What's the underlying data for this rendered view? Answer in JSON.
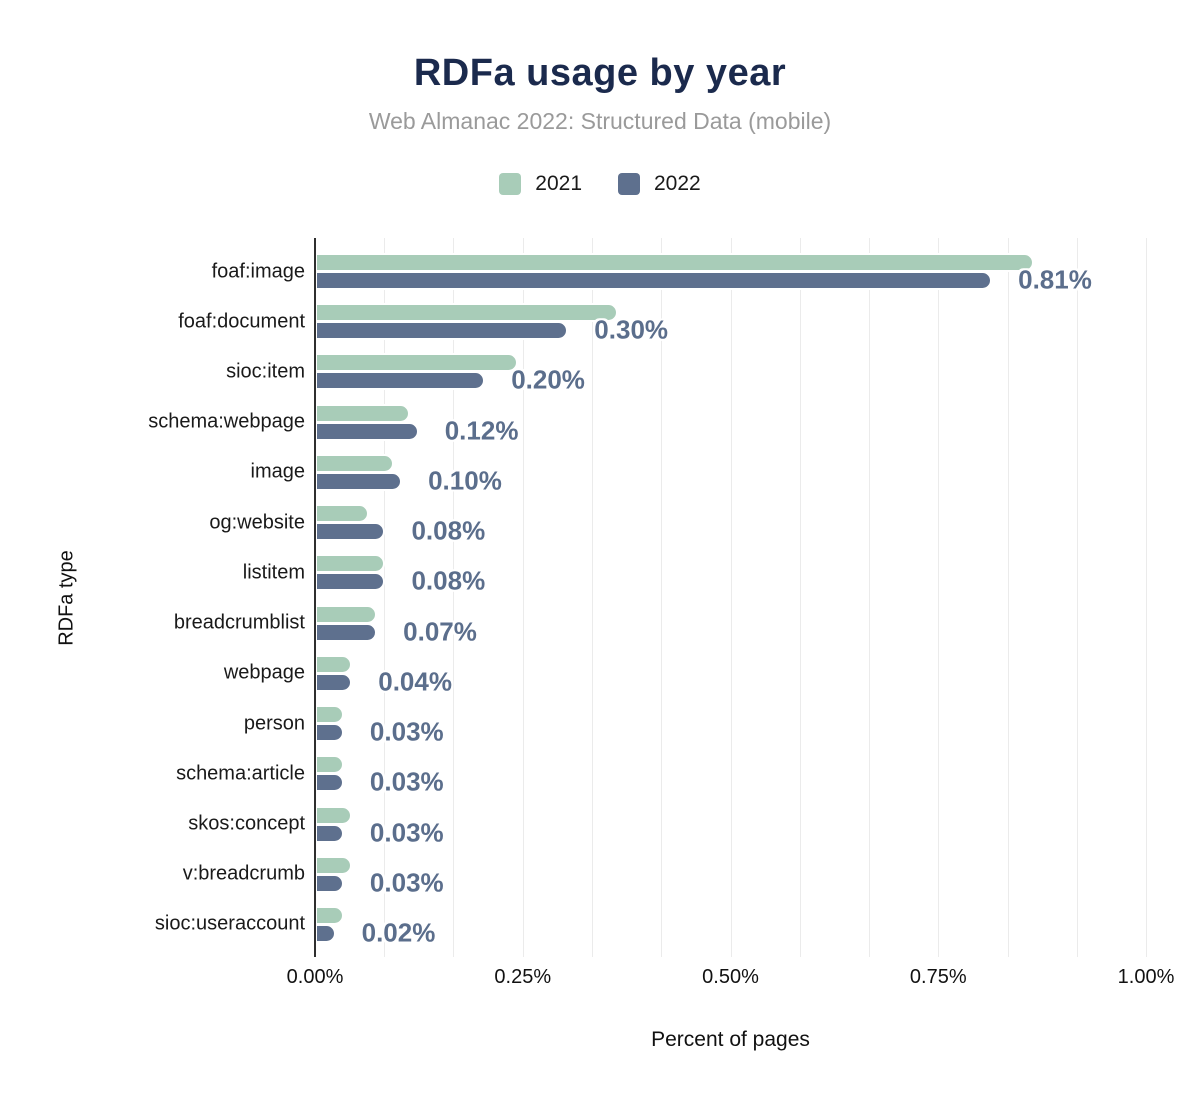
{
  "chart_data": {
    "type": "bar",
    "orientation": "horizontal",
    "title": "RDFa usage by year",
    "subtitle": "Web Almanac 2022: Structured Data (mobile)",
    "xlabel": "Percent of pages",
    "ylabel": "RDFa type",
    "xlim_pct": [
      0,
      1.0
    ],
    "x_ticks": [
      "0.00%",
      "0.25%",
      "0.50%",
      "0.75%",
      "1.00%"
    ],
    "grid": "faint vertical gridlines every 1/12 of axis (minor ticks of 0.25% majors), gridlines on",
    "legend_position": "top-center",
    "categories": [
      "foaf:image",
      "foaf:document",
      "sioc:item",
      "schema:webpage",
      "image",
      "og:website",
      "listitem",
      "breadcrumblist",
      "webpage",
      "person",
      "schema:article",
      "skos:concept",
      "v:breadcrumb",
      "sioc:useraccount"
    ],
    "series": [
      {
        "name": "2021",
        "color": "#a8ccb8",
        "values_pct": [
          0.86,
          0.36,
          0.24,
          0.11,
          0.09,
          0.06,
          0.08,
          0.07,
          0.04,
          0.03,
          0.03,
          0.04,
          0.04,
          0.03
        ]
      },
      {
        "name": "2022",
        "color": "#5e708e",
        "values_pct": [
          0.81,
          0.3,
          0.2,
          0.12,
          0.1,
          0.08,
          0.08,
          0.07,
          0.04,
          0.03,
          0.03,
          0.03,
          0.03,
          0.02
        ]
      }
    ],
    "value_labels": [
      "0.81%",
      "0.30%",
      "0.20%",
      "0.12%",
      "0.10%",
      "0.08%",
      "0.08%",
      "0.07%",
      "0.04%",
      "0.03%",
      "0.03%",
      "0.03%",
      "0.03%",
      "0.02%"
    ],
    "value_labels_refer_to": "2022",
    "colors": {
      "title": "#1b2a4d",
      "subtitle": "#9a9a9a",
      "value_label": "#5b6e8c",
      "gridline": "#ebebeb",
      "axis_line": "#2f2f2f"
    }
  }
}
